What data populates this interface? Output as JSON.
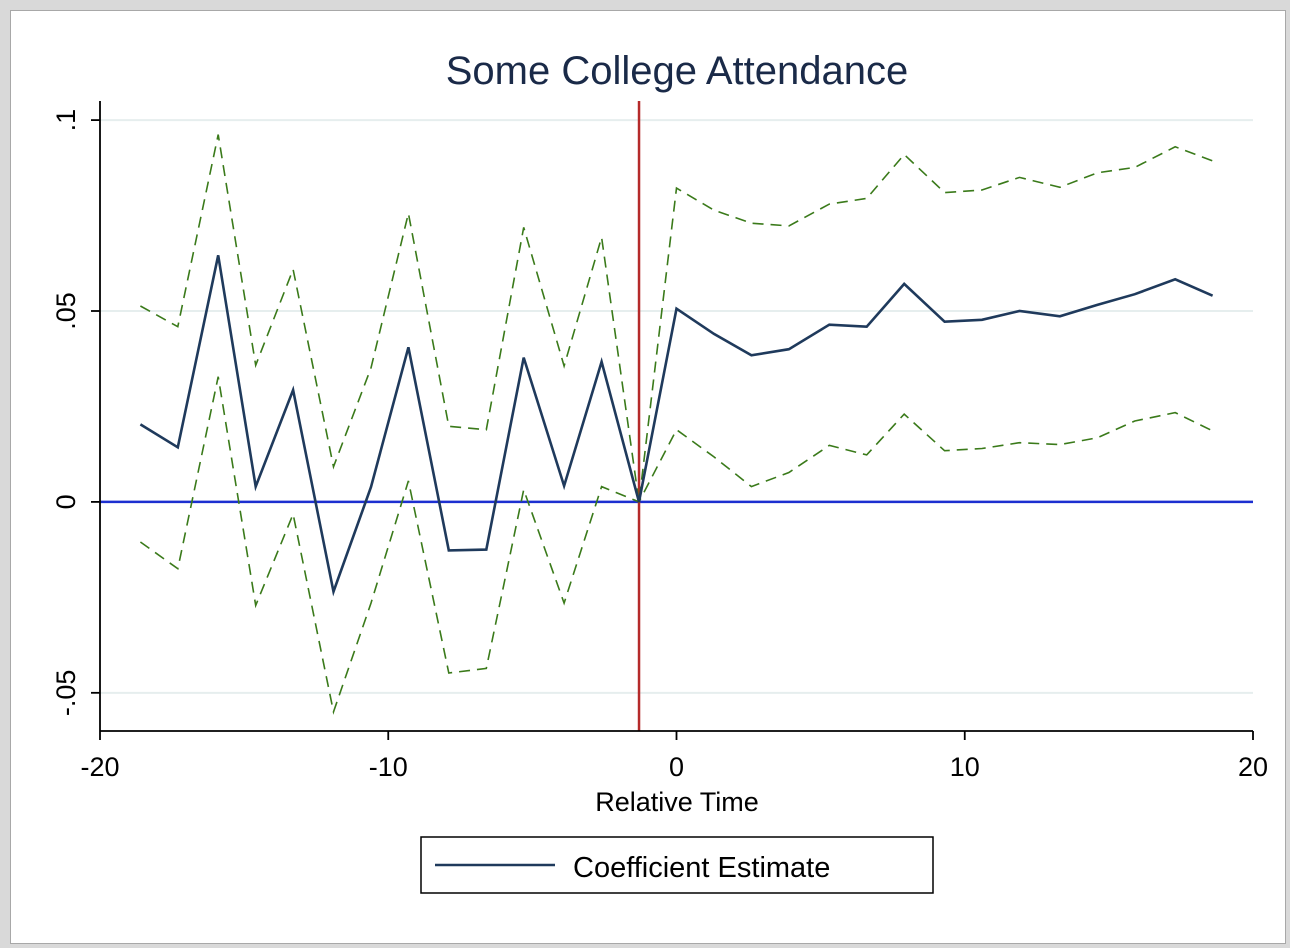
{
  "chart_data": {
    "type": "line",
    "title": "Some College Attendance",
    "xlabel": "Relative Time",
    "ylabel": "",
    "xlim": [
      -20,
      20
    ],
    "ylim": [
      -0.06,
      0.105
    ],
    "xticks": [
      {
        "value": -20,
        "label": "-20"
      },
      {
        "value": -10,
        "label": "-10"
      },
      {
        "value": 0,
        "label": "0"
      },
      {
        "value": 10,
        "label": "10"
      },
      {
        "value": 20,
        "label": "20"
      }
    ],
    "yticks": [
      {
        "value": -0.05,
        "label": "-.05"
      },
      {
        "value": 0,
        "label": "0"
      },
      {
        "value": 0.05,
        "label": ".05"
      },
      {
        "value": 0.1,
        "label": ".1"
      }
    ],
    "grid": true,
    "reference_lines": {
      "horizontal": {
        "value": 0,
        "color": "#1c2fd0"
      },
      "vertical": {
        "value": -1.3,
        "color": "#b52a2a"
      }
    },
    "x": [
      -18.6,
      -17.3,
      -15.9,
      -14.6,
      -13.3,
      -11.9,
      -10.6,
      -9.3,
      -7.9,
      -6.6,
      -5.3,
      -3.9,
      -2.6,
      -1.3,
      0.0,
      1.3,
      2.6,
      3.9,
      5.3,
      6.6,
      7.9,
      9.3,
      10.6,
      11.9,
      13.3,
      14.6,
      15.9,
      17.3,
      18.6
    ],
    "series": [
      {
        "name": "Coefficient Estimate",
        "color": "#1f3a5c",
        "style": "solid",
        "values": [
          0.0203,
          0.0143,
          0.0646,
          0.004,
          0.0293,
          -0.0235,
          0.0039,
          0.0405,
          -0.0127,
          -0.0125,
          0.0378,
          0.0042,
          0.0367,
          0.0,
          0.0506,
          0.044,
          0.0384,
          0.04,
          0.0464,
          0.0459,
          0.0571,
          0.0472,
          0.0477,
          0.05,
          0.0486,
          0.0516,
          0.0544,
          0.0583,
          0.054
        ]
      },
      {
        "color": "#3a7a1a",
        "style": "dashed",
        "values": [
          0.0513,
          0.0459,
          0.0962,
          0.0358,
          0.0609,
          0.0092,
          0.0351,
          0.0756,
          0.0198,
          0.0189,
          0.0719,
          0.0356,
          0.0693,
          0.0,
          0.0822,
          0.0764,
          0.073,
          0.0723,
          0.078,
          0.0795,
          0.091,
          0.081,
          0.0817,
          0.085,
          0.0824,
          0.0862,
          0.0876,
          0.093,
          0.0893
        ]
      },
      {
        "color": "#3a7a1a",
        "style": "dashed",
        "values": [
          -0.0105,
          -0.0175,
          0.0328,
          -0.0271,
          -0.0032,
          -0.055,
          -0.0265,
          0.0055,
          -0.0448,
          -0.0436,
          0.0032,
          -0.0265,
          0.004,
          0.0,
          0.0189,
          0.0118,
          0.004,
          0.0077,
          0.0148,
          0.0123,
          0.023,
          0.0134,
          0.014,
          0.0155,
          0.015,
          0.0168,
          0.0212,
          0.0234,
          0.0186
        ]
      }
    ],
    "legend": {
      "position": "bottom-center",
      "entries": [
        "Coefficient Estimate"
      ]
    }
  }
}
